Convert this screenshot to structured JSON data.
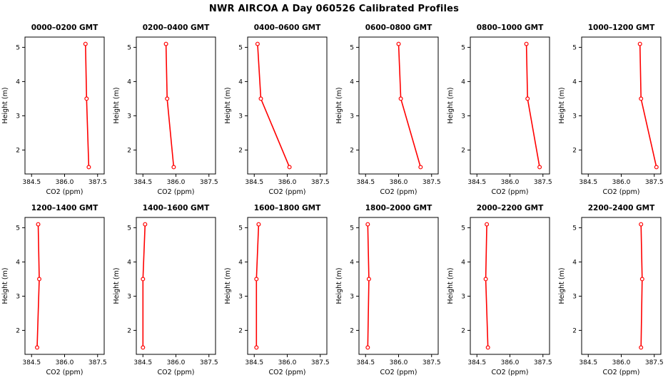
{
  "page": {
    "title": "NWR AIRCOA A  Day 060526  Calibrated Profiles"
  },
  "chart_data": {
    "type": "line",
    "title": "NWR AIRCOA A  Day 060526  Calibrated Profiles",
    "xlabel": "CO2 (ppm)",
    "ylabel": "Height (m)",
    "xlim": [
      384.2,
      387.8
    ],
    "ylim": [
      1.3,
      5.3
    ],
    "xticks": [
      384.5,
      386.0,
      387.5
    ],
    "yticks": [
      2,
      3,
      4,
      5
    ],
    "heights_m": [
      1.5,
      3.5,
      5.1
    ],
    "line_color": "#ff0000",
    "marker": "open-circle",
    "panels": [
      {
        "label": "0000–0200 GMT",
        "co2_ppm": [
          387.1,
          387.0,
          386.95
        ]
      },
      {
        "label": "0200–0400 GMT",
        "co2_ppm": [
          385.9,
          385.6,
          385.55
        ]
      },
      {
        "label": "0400–0600 GMT",
        "co2_ppm": [
          386.1,
          384.8,
          384.65
        ]
      },
      {
        "label": "0600–0800 GMT",
        "co2_ppm": [
          387.0,
          386.1,
          386.0
        ]
      },
      {
        "label": "0800–1000 GMT",
        "co2_ppm": [
          387.35,
          386.8,
          386.75
        ]
      },
      {
        "label": "1000–1200 GMT",
        "co2_ppm": [
          387.6,
          386.9,
          386.85
        ]
      },
      {
        "label": "1200–1400 GMT",
        "co2_ppm": [
          384.75,
          384.85,
          384.8
        ]
      },
      {
        "label": "1400–1600 GMT",
        "co2_ppm": [
          384.5,
          384.5,
          384.6
        ]
      },
      {
        "label": "1600–1800 GMT",
        "co2_ppm": [
          384.6,
          384.6,
          384.7
        ]
      },
      {
        "label": "1800–2000 GMT",
        "co2_ppm": [
          384.6,
          384.65,
          384.6
        ]
      },
      {
        "label": "2000–2200 GMT",
        "co2_ppm": [
          385.0,
          384.9,
          384.95
        ]
      },
      {
        "label": "2200–2400 GMT",
        "co2_ppm": [
          386.9,
          386.95,
          386.9
        ]
      }
    ]
  }
}
